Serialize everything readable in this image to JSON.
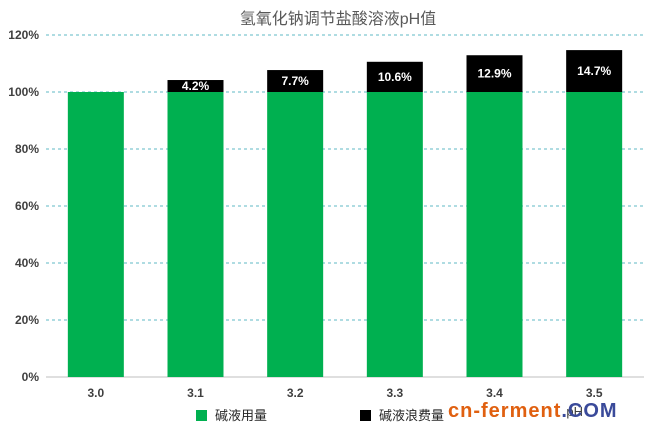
{
  "chart_data": {
    "type": "bar",
    "title": "氢氧化钠调节盐酸溶液pH值",
    "xlabel": "pH",
    "ylabel": "",
    "categories": [
      "3.0",
      "3.1",
      "3.2",
      "3.3",
      "3.4",
      "3.5"
    ],
    "ylim": [
      0,
      120
    ],
    "yticks": [
      0,
      20,
      40,
      60,
      80,
      100,
      120
    ],
    "ytick_labels": [
      "0%",
      "20%",
      "40%",
      "60%",
      "80%",
      "100%",
      "120%"
    ],
    "stacked": true,
    "grid": true,
    "legend_position": "bottom",
    "series": [
      {
        "name": "碱液用量",
        "color": "#00b050",
        "values": [
          100,
          100,
          100,
          100,
          100,
          100
        ]
      },
      {
        "name": "碱液浪费量",
        "color": "#000000",
        "values": [
          0,
          4.2,
          7.7,
          10.6,
          12.9,
          14.7
        ],
        "labels": [
          "",
          "4.2%",
          "7.7%",
          "10.6%",
          "12.9%",
          "14.7%"
        ]
      }
    ]
  },
  "watermark": {
    "prefix": "cn-ferment",
    "suffix": ".COM",
    "prefix_color": "#e06010",
    "suffix_color": "#3a4a9a"
  }
}
